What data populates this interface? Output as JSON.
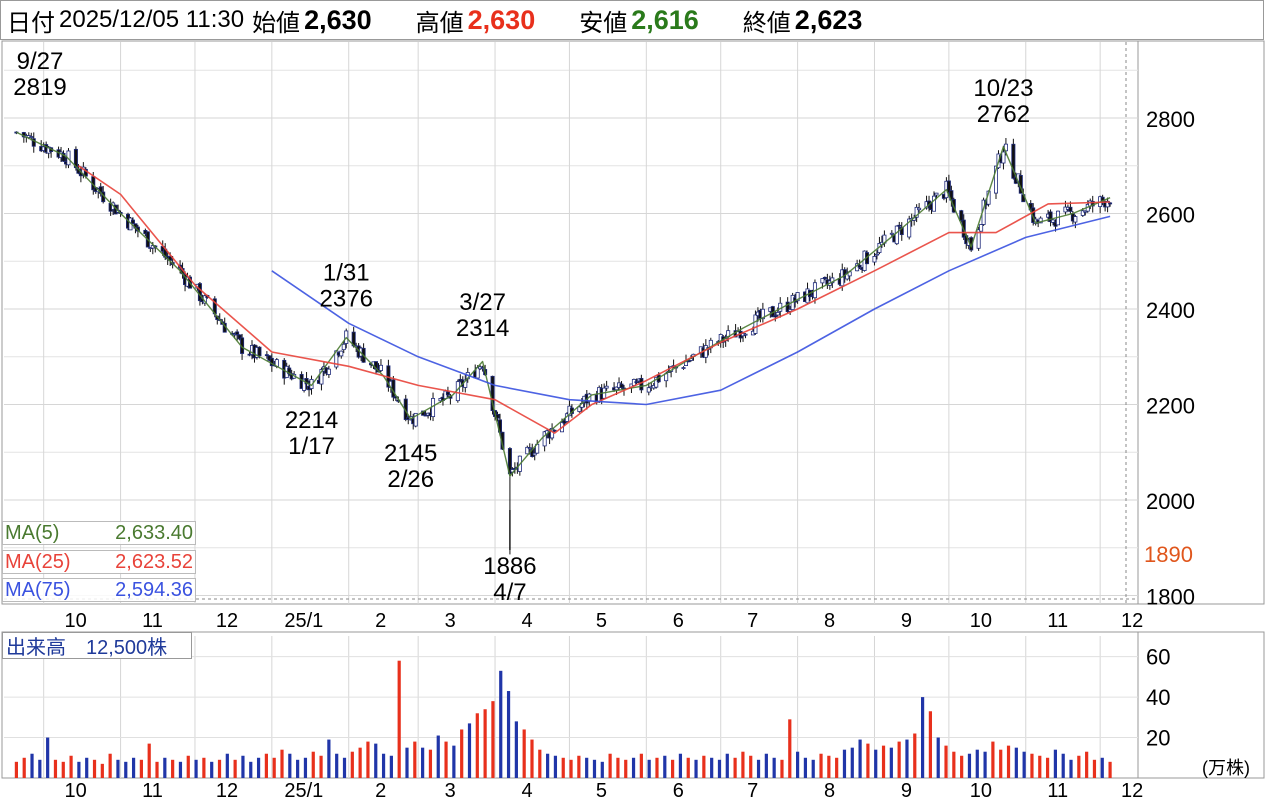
{
  "header": {
    "date_label": "日付",
    "date_value": "2025/12/05 11:30",
    "open_label": "始値",
    "open_value": "2,630",
    "high_label": "高値",
    "high_value": "2,630",
    "low_label": "安値",
    "low_value": "2,616",
    "close_label": "終値",
    "close_value": "2,623"
  },
  "colors": {
    "up": "#e8301c",
    "down": "#2a7a1b",
    "ma5": "#4a7a30",
    "ma25": "#e8433a",
    "ma75": "#3a52e0",
    "vol_up": "#e8301c",
    "vol_down": "#2035a8"
  },
  "legend": {
    "ma5_label": "MA(5)",
    "ma5_value": "2,633.40",
    "ma25_label": "MA(25)",
    "ma25_value": "2,623.52",
    "ma75_label": "MA(75)",
    "ma75_value": "2,594.36"
  },
  "volume_panel": {
    "label": "出来高　12,500株",
    "unit": "(万株)",
    "ticks": [
      "60",
      "40",
      "20"
    ]
  },
  "chart_data": [
    {
      "type": "line",
      "subtype": "candlestick",
      "x_month_labels": [
        "10",
        "11",
        "12",
        "25/1",
        "2",
        "3",
        "4",
        "5",
        "6",
        "7",
        "8",
        "9",
        "10",
        "11",
        "12"
      ],
      "y_tick_labels": [
        "2800",
        "2600",
        "2400",
        "2200",
        "2000",
        "1800"
      ],
      "ylim": [
        1800,
        2960
      ],
      "grid": true,
      "last_close_marker": "1890",
      "series": [
        {
          "name": "MA(5)",
          "x": [
            "2024-09-20",
            "2024-10-10",
            "2024-11-01",
            "2024-11-25",
            "2024-12-20",
            "2025-01-17",
            "2025-01-31",
            "2025-02-15",
            "2025-02-26",
            "2025-03-15",
            "2025-03-27",
            "2025-04-07",
            "2025-04-20",
            "2025-05-10",
            "2025-06-01",
            "2025-06-20",
            "2025-07-10",
            "2025-08-01",
            "2025-08-20",
            "2025-09-10",
            "2025-09-30",
            "2025-10-10",
            "2025-10-23",
            "2025-11-05",
            "2025-11-20",
            "2025-12-05"
          ],
          "values": [
            2770,
            2720,
            2600,
            2480,
            2320,
            2240,
            2340,
            2260,
            2170,
            2220,
            2290,
            2050,
            2130,
            2220,
            2240,
            2300,
            2360,
            2420,
            2470,
            2560,
            2650,
            2530,
            2740,
            2580,
            2600,
            2633
          ]
        },
        {
          "name": "MA(25)",
          "x": [
            "2024-10-15",
            "2024-11-01",
            "2024-12-01",
            "2025-01-01",
            "2025-02-01",
            "2025-03-01",
            "2025-04-01",
            "2025-04-25",
            "2025-05-10",
            "2025-06-01",
            "2025-07-01",
            "2025-08-01",
            "2025-09-01",
            "2025-10-01",
            "2025-10-20",
            "2025-11-10",
            "2025-12-05"
          ],
          "values": [
            2700,
            2640,
            2450,
            2310,
            2280,
            2240,
            2210,
            2140,
            2200,
            2250,
            2330,
            2400,
            2480,
            2560,
            2560,
            2620,
            2624
          ]
        },
        {
          "name": "MA(75)",
          "x": [
            "2025-01-01",
            "2025-02-01",
            "2025-03-01",
            "2025-04-01",
            "2025-05-01",
            "2025-06-01",
            "2025-07-01",
            "2025-08-01",
            "2025-09-01",
            "2025-10-01",
            "2025-11-01",
            "2025-12-05"
          ],
          "values": [
            2480,
            2370,
            2300,
            2240,
            2210,
            2200,
            2230,
            2310,
            2400,
            2480,
            2550,
            2594
          ]
        }
      ],
      "annotations": [
        {
          "date": "9/27",
          "value": "2819",
          "kind": "high"
        },
        {
          "date": "1/17",
          "value": "2214",
          "kind": "low"
        },
        {
          "date": "1/31",
          "value": "2376",
          "kind": "high"
        },
        {
          "date": "2/26",
          "value": "2145",
          "kind": "low"
        },
        {
          "date": "3/27",
          "value": "2314",
          "kind": "high"
        },
        {
          "date": "4/7",
          "value": "1886",
          "kind": "low"
        },
        {
          "date": "10/23",
          "value": "2762",
          "kind": "high"
        }
      ]
    },
    {
      "type": "bar",
      "subtype": "volume",
      "ylabel": "(万株)",
      "ylim": [
        0,
        70
      ],
      "series": [
        {
          "values": [
            8,
            10,
            12,
            9,
            20,
            9,
            8,
            11,
            8,
            10,
            9,
            7,
            12,
            9,
            8,
            10,
            9,
            17,
            8,
            10,
            9,
            8,
            11,
            9,
            10,
            8,
            9,
            12,
            9,
            11,
            8,
            10,
            12,
            10,
            14,
            12,
            9,
            10,
            13,
            11,
            19,
            12,
            10,
            13,
            15,
            18,
            17,
            12,
            11,
            58,
            15,
            18,
            15,
            14,
            21,
            18,
            16,
            24,
            27,
            32,
            34,
            38,
            53,
            43,
            28,
            24,
            19,
            14,
            12,
            11,
            10,
            9,
            11,
            10,
            9,
            8,
            12,
            10,
            9,
            10,
            12,
            9,
            10,
            11,
            9,
            12,
            10,
            9,
            11,
            10,
            9,
            12,
            10,
            13,
            11,
            9,
            12,
            10,
            9,
            29,
            13,
            10,
            9,
            12,
            11,
            10,
            14,
            15,
            19,
            17,
            14,
            16,
            15,
            18,
            19,
            22,
            40,
            33,
            20,
            16,
            13,
            11,
            12,
            14,
            13,
            18,
            14,
            16,
            15,
            13,
            12,
            11,
            10,
            14,
            12,
            9,
            11,
            13,
            9,
            10,
            8
          ]
        }
      ]
    }
  ]
}
